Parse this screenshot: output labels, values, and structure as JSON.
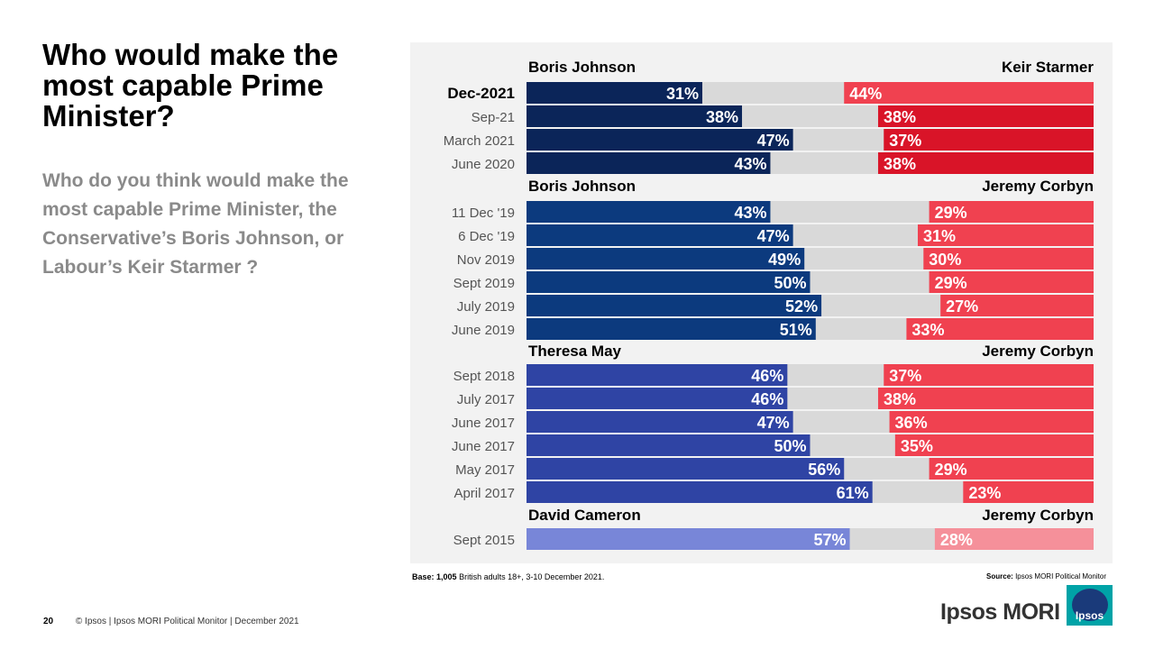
{
  "page": {
    "title": "Who would make the most capable Prime Minister?",
    "subtitle": "Who do you think would make the most capable Prime Minister, the Conservative’s Boris Johnson, or Labour’s Keir Starmer ?",
    "base_label": "Base:",
    "base_text": "1,005 British adults 18+, 3-10 December 2021.",
    "base_count": "1,005",
    "base_rest": "British adults 18+, 3-10 December 2021.",
    "source_label": "Source:",
    "source_text": "Ipsos MORI Political Monitor",
    "page_number": "20",
    "footer": "© Ipsos | Ipsos MORI Political Monitor | December 2021",
    "brand": "Ipsos MORI",
    "logo_word": "Ipsos"
  },
  "chart_data": {
    "type": "bar",
    "orientation": "horizontal-diverging",
    "value_unit": "%",
    "xlim": [
      0,
      100
    ],
    "colors": {
      "grey": "#d9d9d9",
      "groups": [
        {
          "left": "#0b2559",
          "right": "#f04150"
        },
        {
          "left": "#0c3a7e",
          "right": "#f04150"
        },
        {
          "left": "#2f44a4",
          "right": "#f04150"
        },
        {
          "left": "#7886d8",
          "right": "#f5909a"
        }
      ],
      "starmer_recent": "#d91428"
    },
    "groups": [
      {
        "left_leader": "Boris Johnson",
        "right_leader": "Keir Starmer",
        "rows": [
          {
            "label": "Dec-2021",
            "left": 31,
            "right": 44,
            "highlight": true
          },
          {
            "label": "Sep-21",
            "left": 38,
            "right": 38
          },
          {
            "label": "March 2021",
            "left": 47,
            "right": 37
          },
          {
            "label": "June 2020",
            "left": 43,
            "right": 38
          }
        ]
      },
      {
        "left_leader": "Boris Johnson",
        "right_leader": "Jeremy Corbyn",
        "rows": [
          {
            "label": "11 Dec '19",
            "left": 43,
            "right": 29
          },
          {
            "label": "6 Dec '19",
            "left": 47,
            "right": 31
          },
          {
            "label": "Nov 2019",
            "left": 49,
            "right": 30
          },
          {
            "label": "Sept 2019",
            "left": 50,
            "right": 29
          },
          {
            "label": "July 2019",
            "left": 52,
            "right": 27
          },
          {
            "label": "June 2019",
            "left": 51,
            "right": 33
          }
        ]
      },
      {
        "left_leader": "Theresa May",
        "right_leader": "Jeremy Corbyn",
        "rows": [
          {
            "label": "Sept 2018",
            "left": 46,
            "right": 37
          },
          {
            "label": "July 2017",
            "left": 46,
            "right": 38
          },
          {
            "label": "June 2017",
            "left": 47,
            "right": 36
          },
          {
            "label": "June 2017",
            "left": 50,
            "right": 35
          },
          {
            "label": "May 2017",
            "left": 56,
            "right": 29
          },
          {
            "label": "April 2017",
            "left": 61,
            "right": 23
          }
        ]
      },
      {
        "left_leader": "David Cameron",
        "right_leader": "Jeremy Corbyn",
        "rows": [
          {
            "label": "Sept 2015",
            "left": 57,
            "right": 28
          }
        ]
      }
    ]
  }
}
